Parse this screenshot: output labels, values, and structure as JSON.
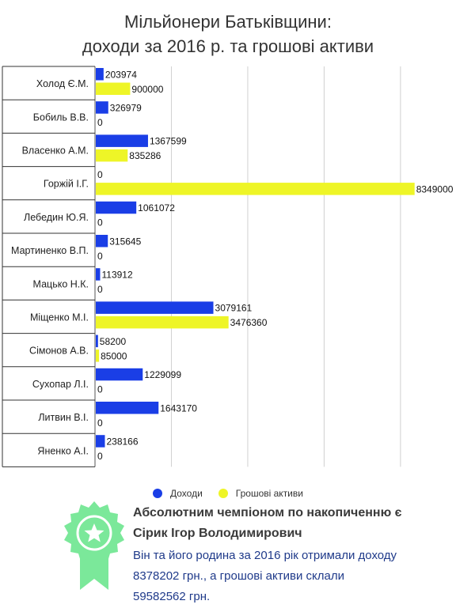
{
  "title_lines": [
    "Мільйонери Батьківщини:",
    "доходи за 2016 р. та грошові активи"
  ],
  "chart_data": {
    "type": "bar",
    "orientation": "horizontal",
    "categories": [
      "Холод Є.М.",
      "Бобиль В.В.",
      "Власенко А.М.",
      "Горжій І.Г.",
      "Лебедин Ю.Я.",
      "Мартиненко В.П.",
      "Мацько Н.К.",
      "Міщенко М.І.",
      "Сімонов А.В.",
      "Сухопар Л.І.",
      "Литвин В.І.",
      "Яненко А.І."
    ],
    "series": [
      {
        "name": "Доходи",
        "color": "#1a3ee6",
        "values": [
          203974,
          326979,
          1367599,
          0,
          1061072,
          315645,
          113912,
          3079161,
          58200,
          1229099,
          1643170,
          238166
        ]
      },
      {
        "name": "Грошові активи",
        "color": "#eef527",
        "values": [
          900000,
          0,
          835286,
          8349000,
          0,
          0,
          0,
          3476360,
          85000,
          0,
          0,
          0
        ]
      }
    ],
    "xlim": [
      0,
      8500000
    ],
    "grid": true,
    "legend": "bottom"
  },
  "callout": {
    "headline_lines": [
      "Абсолютним чемпіоном по накопиченню є",
      "Сірик Ігор Володимирович"
    ],
    "body_lines": [
      "Він та його родина за 2016 рік отримали доходу",
      "8378202 грн., а грошові активи склали",
      "59582562 грн."
    ],
    "headline_color": "#3a3a3a",
    "body_color": "#1f3a8a"
  },
  "award_color": "#7be89a"
}
